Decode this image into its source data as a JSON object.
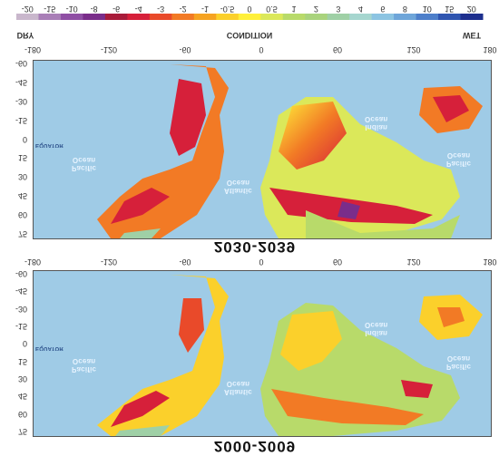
{
  "legend": {
    "dry_label": "DRY",
    "wet_label": "WET",
    "condition_label": "CONDITION",
    "values": [
      "-20",
      "-15",
      "-10",
      "-8",
      "-6",
      "-4",
      "-3",
      "-2",
      "-1",
      "-0.5",
      "0",
      "0.5",
      "1",
      "2",
      "3",
      "4",
      "6",
      "8",
      "10",
      "15",
      "20"
    ],
    "colors": [
      "#c9b7cc",
      "#a97fb7",
      "#8f4fa4",
      "#7a2d8a",
      "#a81b3a",
      "#d6203a",
      "#e94a2a",
      "#f27a25",
      "#f6a321",
      "#fbd02b",
      "#fff03a",
      "#dbe85a",
      "#b8da6a",
      "#a9d37d",
      "#9fd0a6",
      "#a6d6cf",
      "#8cc4e2",
      "#6ea5d9",
      "#4d7fca",
      "#2f55b0",
      "#1d2f8e"
    ]
  },
  "axes": {
    "longitudes": [
      "-180",
      "-120",
      "-60",
      "0",
      "60",
      "120",
      "180"
    ],
    "latitudes": [
      "-60",
      "-45",
      "-30",
      "-15",
      "0",
      "15",
      "30",
      "45",
      "60",
      "75"
    ]
  },
  "ocean_labels": {
    "pacific_east": "Pacific\nOcean",
    "indian": "Indian\nOcean",
    "atlantic": "Atlantic\nOcean",
    "pacific_west": "Pacific\nOcean",
    "equator": "EQUATOR"
  },
  "panels": [
    {
      "title": "2030-2039"
    },
    {
      "title": "2000-2009"
    }
  ]
}
